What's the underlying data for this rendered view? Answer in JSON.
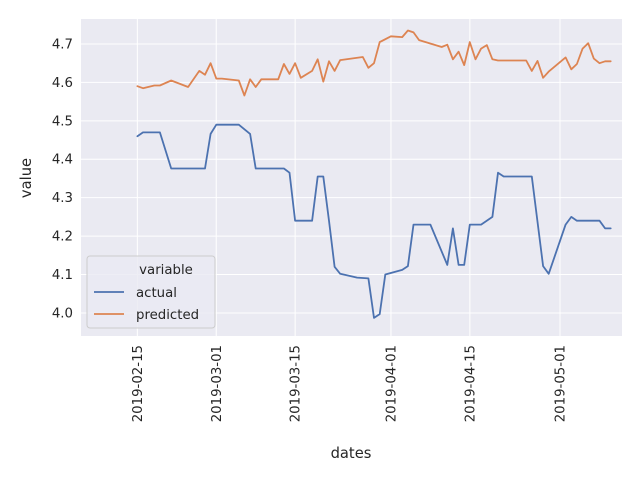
{
  "chart_data": {
    "type": "line",
    "xlabel": "dates",
    "ylabel": "value",
    "x_axis_type": "date",
    "xlim": [
      "2019-02-05",
      "2019-05-12"
    ],
    "ylim": [
      3.94,
      4.765
    ],
    "x_ticks": [
      "2019-02-15",
      "2019-03-01",
      "2019-03-15",
      "2019-04-01",
      "2019-04-15",
      "2019-05-01"
    ],
    "y_ticks": [
      4.0,
      4.1,
      4.2,
      4.3,
      4.4,
      4.5,
      4.6,
      4.7
    ],
    "y_tick_labels": [
      "4.0",
      "4.1",
      "4.2",
      "4.3",
      "4.4",
      "4.5",
      "4.6",
      "4.7"
    ],
    "grid": true,
    "legend": {
      "title": "variable",
      "position": "lower-left"
    },
    "background_color": "#eaeaf2",
    "series": [
      {
        "name": "actual",
        "color": "#4c72b0",
        "points": [
          [
            "2019-02-15",
            4.46
          ],
          [
            "2019-02-16",
            4.47
          ],
          [
            "2019-02-19",
            4.47
          ],
          [
            "2019-02-21",
            4.376
          ],
          [
            "2019-02-27",
            4.376
          ],
          [
            "2019-02-28",
            4.466
          ],
          [
            "2019-03-01",
            4.49
          ],
          [
            "2019-03-05",
            4.49
          ],
          [
            "2019-03-07",
            4.466
          ],
          [
            "2019-03-08",
            4.376
          ],
          [
            "2019-03-13",
            4.376
          ],
          [
            "2019-03-14",
            4.365
          ],
          [
            "2019-03-15",
            4.24
          ],
          [
            "2019-03-18",
            4.24
          ],
          [
            "2019-03-19",
            4.355
          ],
          [
            "2019-03-20",
            4.355
          ],
          [
            "2019-03-21",
            4.24
          ],
          [
            "2019-03-22",
            4.12
          ],
          [
            "2019-03-23",
            4.102
          ],
          [
            "2019-03-26",
            4.092
          ],
          [
            "2019-03-28",
            4.09
          ],
          [
            "2019-03-29",
            3.987
          ],
          [
            "2019-03-30",
            3.997
          ],
          [
            "2019-03-31",
            4.1
          ],
          [
            "2019-04-03",
            4.112
          ],
          [
            "2019-04-04",
            4.122
          ],
          [
            "2019-04-05",
            4.23
          ],
          [
            "2019-04-06",
            4.23
          ],
          [
            "2019-04-08",
            4.23
          ],
          [
            "2019-04-11",
            4.125
          ],
          [
            "2019-04-12",
            4.22
          ],
          [
            "2019-04-13",
            4.125
          ],
          [
            "2019-04-14",
            4.125
          ],
          [
            "2019-04-15",
            4.23
          ],
          [
            "2019-04-17",
            4.23
          ],
          [
            "2019-04-19",
            4.25
          ],
          [
            "2019-04-20",
            4.365
          ],
          [
            "2019-04-21",
            4.355
          ],
          [
            "2019-04-26",
            4.355
          ],
          [
            "2019-04-28",
            4.122
          ],
          [
            "2019-04-29",
            4.102
          ],
          [
            "2019-05-02",
            4.23
          ],
          [
            "2019-05-03",
            4.25
          ],
          [
            "2019-05-04",
            4.24
          ],
          [
            "2019-05-08",
            4.24
          ],
          [
            "2019-05-09",
            4.22
          ],
          [
            "2019-05-10",
            4.22
          ]
        ]
      },
      {
        "name": "predicted",
        "color": "#dd8452",
        "points": [
          [
            "2019-02-15",
            4.59
          ],
          [
            "2019-02-16",
            4.585
          ],
          [
            "2019-02-18",
            4.592
          ],
          [
            "2019-02-19",
            4.592
          ],
          [
            "2019-02-21",
            4.605
          ],
          [
            "2019-02-24",
            4.588
          ],
          [
            "2019-02-26",
            4.63
          ],
          [
            "2019-02-27",
            4.62
          ],
          [
            "2019-02-28",
            4.65
          ],
          [
            "2019-03-01",
            4.61
          ],
          [
            "2019-03-02",
            4.61
          ],
          [
            "2019-03-05",
            4.605
          ],
          [
            "2019-03-06",
            4.566
          ],
          [
            "2019-03-07",
            4.608
          ],
          [
            "2019-03-08",
            4.588
          ],
          [
            "2019-03-09",
            4.608
          ],
          [
            "2019-03-12",
            4.608
          ],
          [
            "2019-03-13",
            4.648
          ],
          [
            "2019-03-14",
            4.622
          ],
          [
            "2019-03-15",
            4.65
          ],
          [
            "2019-03-16",
            4.612
          ],
          [
            "2019-03-18",
            4.63
          ],
          [
            "2019-03-19",
            4.66
          ],
          [
            "2019-03-20",
            4.602
          ],
          [
            "2019-03-21",
            4.655
          ],
          [
            "2019-03-22",
            4.63
          ],
          [
            "2019-03-23",
            4.658
          ],
          [
            "2019-03-27",
            4.666
          ],
          [
            "2019-03-28",
            4.638
          ],
          [
            "2019-03-29",
            4.65
          ],
          [
            "2019-03-30",
            4.705
          ],
          [
            "2019-04-01",
            4.72
          ],
          [
            "2019-04-03",
            4.718
          ],
          [
            "2019-04-04",
            4.735
          ],
          [
            "2019-04-05",
            4.73
          ],
          [
            "2019-04-06",
            4.71
          ],
          [
            "2019-04-10",
            4.692
          ],
          [
            "2019-04-11",
            4.698
          ],
          [
            "2019-04-12",
            4.66
          ],
          [
            "2019-04-13",
            4.68
          ],
          [
            "2019-04-14",
            4.645
          ],
          [
            "2019-04-15",
            4.705
          ],
          [
            "2019-04-16",
            4.66
          ],
          [
            "2019-04-17",
            4.688
          ],
          [
            "2019-04-18",
            4.697
          ],
          [
            "2019-04-19",
            4.66
          ],
          [
            "2019-04-20",
            4.657
          ],
          [
            "2019-04-25",
            4.657
          ],
          [
            "2019-04-26",
            4.63
          ],
          [
            "2019-04-27",
            4.656
          ],
          [
            "2019-04-28",
            4.612
          ],
          [
            "2019-04-29",
            4.628
          ],
          [
            "2019-05-02",
            4.665
          ],
          [
            "2019-05-03",
            4.634
          ],
          [
            "2019-05-04",
            4.648
          ],
          [
            "2019-05-05",
            4.688
          ],
          [
            "2019-05-06",
            4.702
          ],
          [
            "2019-05-07",
            4.662
          ],
          [
            "2019-05-08",
            4.65
          ],
          [
            "2019-05-09",
            4.655
          ],
          [
            "2019-05-10",
            4.655
          ]
        ]
      }
    ]
  }
}
